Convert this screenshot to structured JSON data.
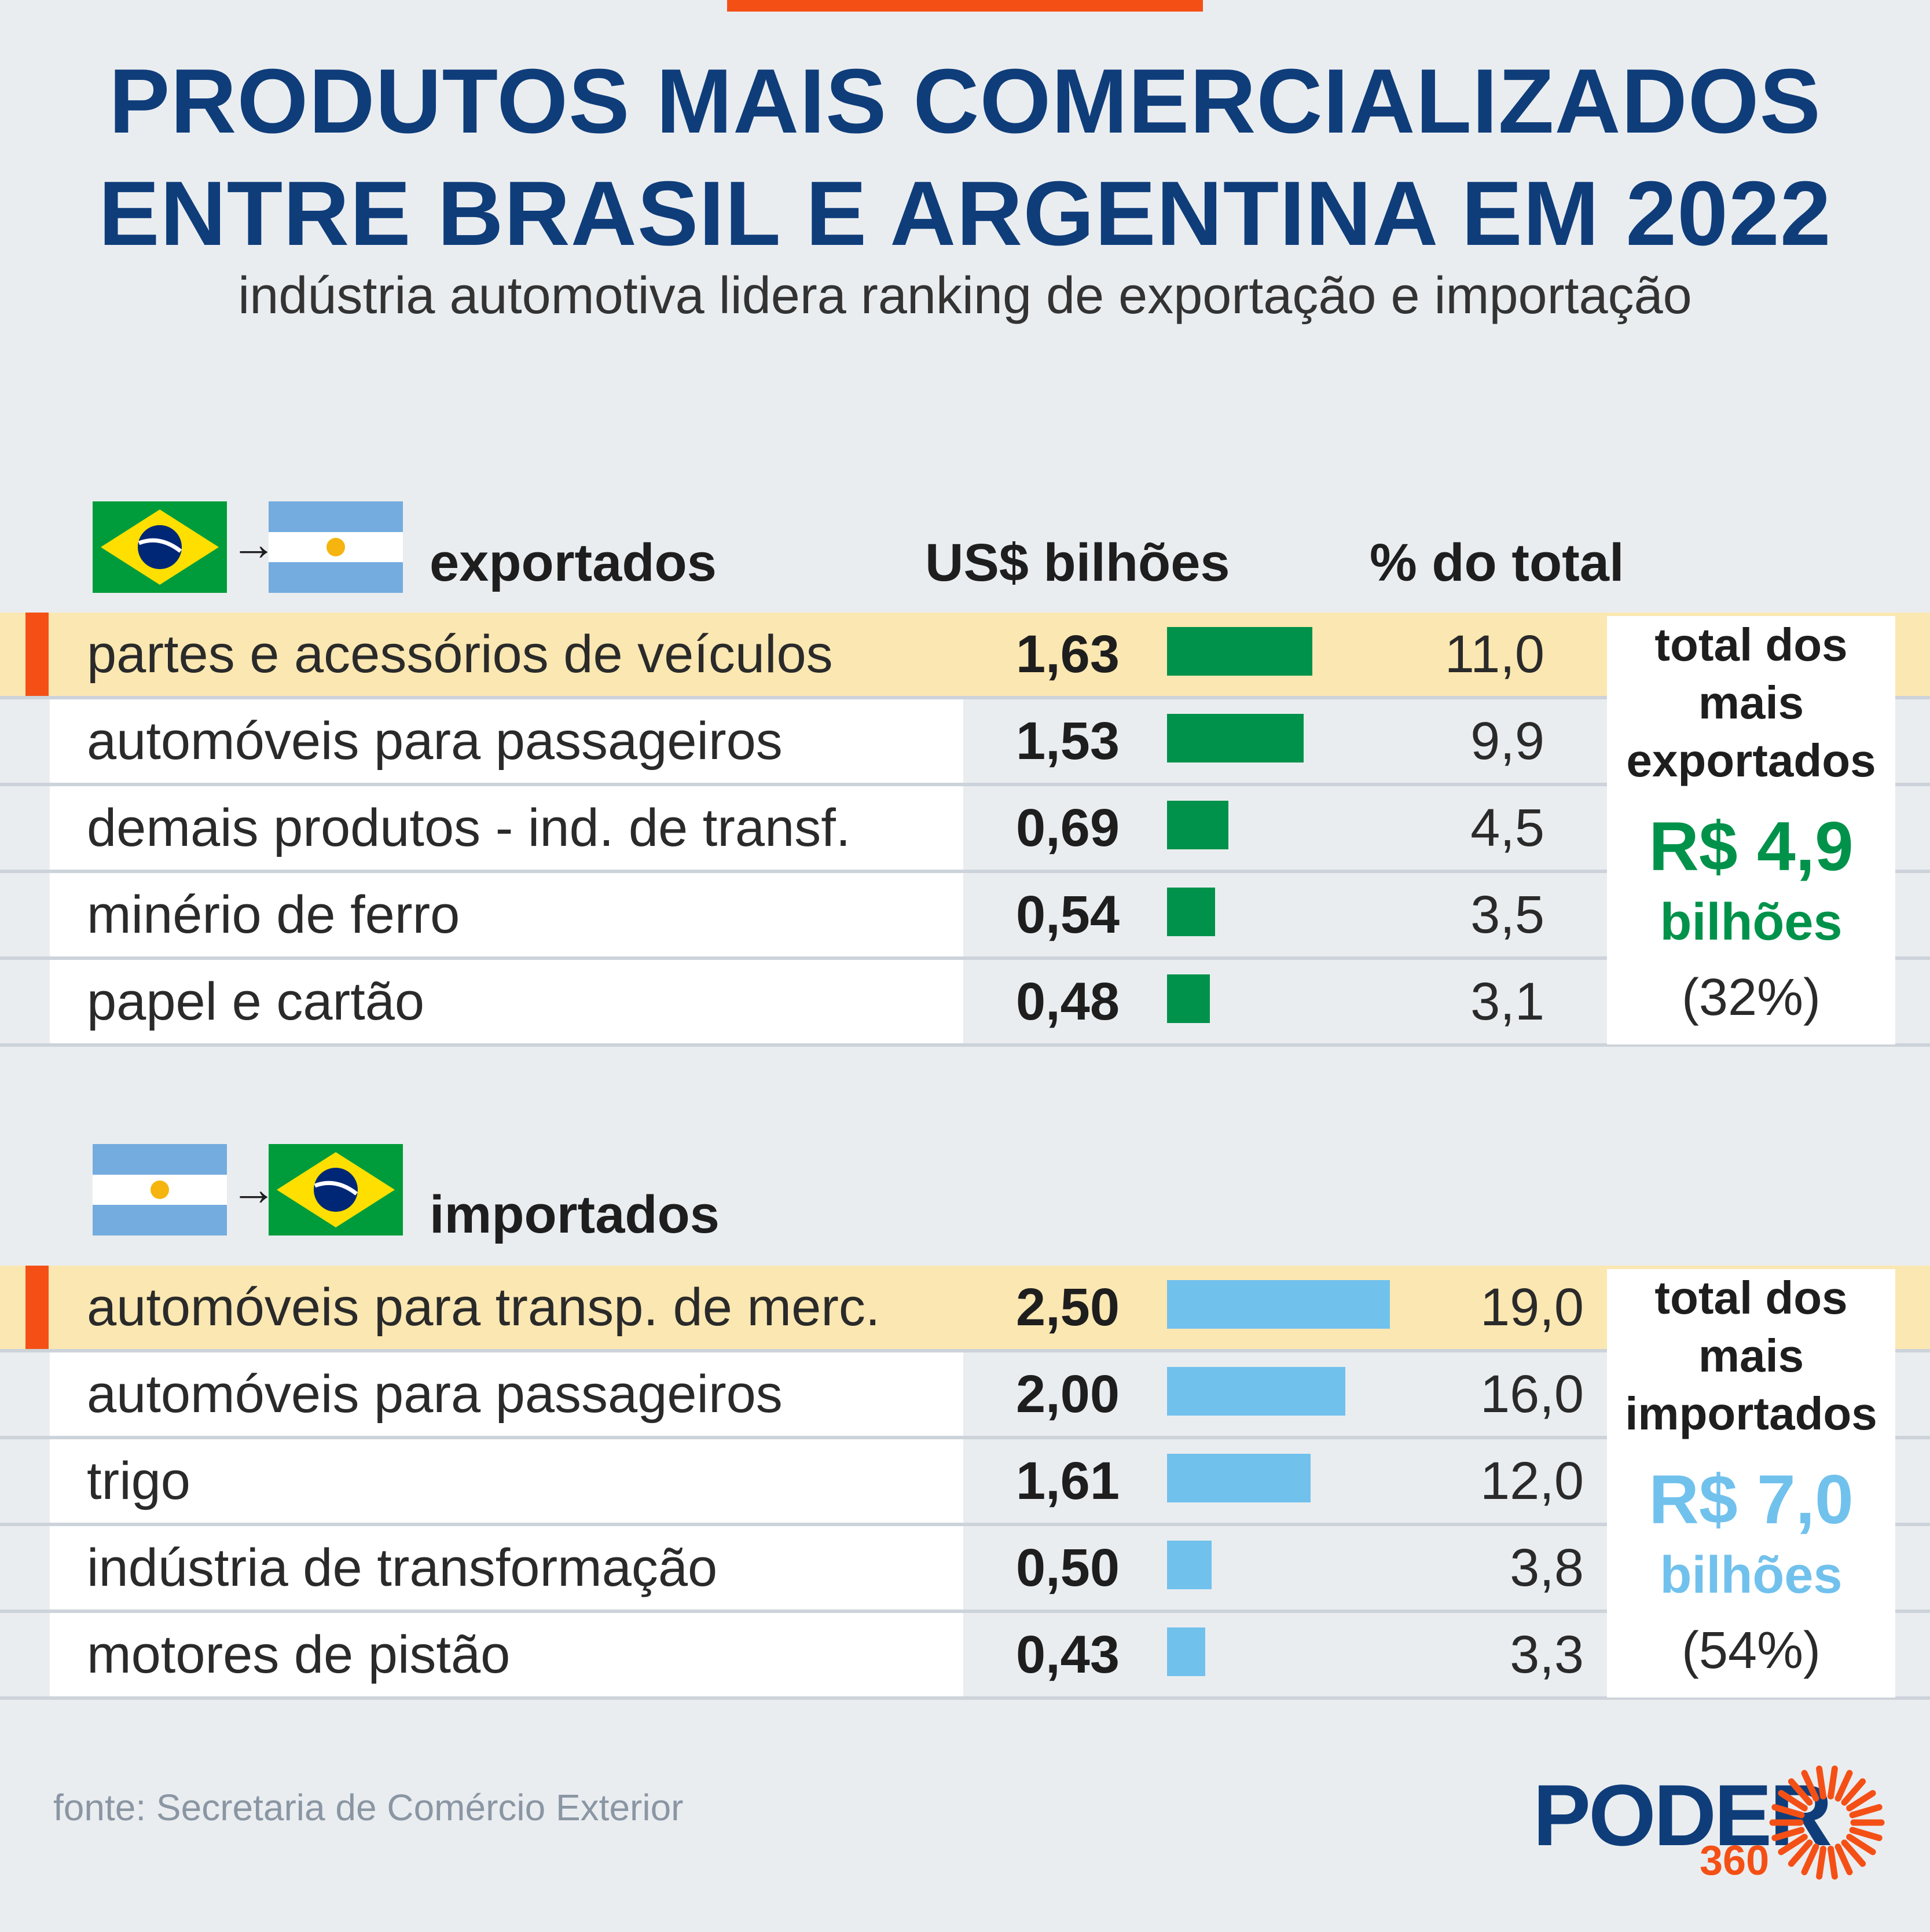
{
  "title_line1": "PRODUTOS MAIS COMERCIALIZADOS",
  "title_line2": "ENTRE BRASIL E ARGENTINA EM 2022",
  "subtitle": "indústria automotiva lidera ranking de exportação e importação",
  "headers": {
    "exports": "exportados",
    "imports": "importados",
    "value": "US$ bilhões",
    "share": "% do total"
  },
  "colors": {
    "export_bar": "#00924a",
    "import_bar": "#71c1ed",
    "accent": "#f45016",
    "title": "#0f3d7a",
    "highlight": "#fbe7b1"
  },
  "export_total": {
    "label_line1": "total dos",
    "label_line2": "mais",
    "label_line3": "exportados",
    "value": "R$ 4,9",
    "unit": "bilhões",
    "pct": "(32%)"
  },
  "import_total": {
    "label_line1": "total dos",
    "label_line2": "mais",
    "label_line3": "importados",
    "value": "R$ 7,0",
    "unit": "bilhões",
    "pct": "(54%)"
  },
  "source": "fonte: Secretaria de Comércio Exterior",
  "logo": {
    "text": "PODER",
    "number": "360"
  },
  "chart_data": [
    {
      "type": "bar",
      "title": "exportados",
      "categories": [
        "partes e acessórios de veículos",
        "automóveis para passageiros",
        "demais produtos - ind. de transf.",
        "minério de ferro",
        "papel e cartão"
      ],
      "values": [
        1.63,
        1.53,
        0.69,
        0.54,
        0.48
      ],
      "value_labels": [
        "1,63",
        "1,53",
        "0,69",
        "0,54",
        "0,48"
      ],
      "share": [
        11.0,
        9.9,
        4.5,
        3.5,
        3.1
      ],
      "share_labels": [
        "11,0",
        "9,9",
        "4,5",
        "3,5",
        "3,1"
      ]
    },
    {
      "type": "bar",
      "title": "importados",
      "categories": [
        "automóveis para transp. de merc.",
        "automóveis para passageiros",
        "trigo",
        "indústria de transformação",
        "motores de pistão"
      ],
      "values": [
        2.5,
        2.0,
        1.61,
        0.5,
        0.43
      ],
      "value_labels": [
        "2,50",
        "2,00",
        "1,61",
        "0,50",
        "0,43"
      ],
      "share": [
        19.0,
        16.0,
        12.0,
        3.8,
        3.3
      ],
      "share_labels": [
        "19,0",
        "16,0",
        "12,0",
        "3,8",
        "3,3"
      ]
    }
  ]
}
